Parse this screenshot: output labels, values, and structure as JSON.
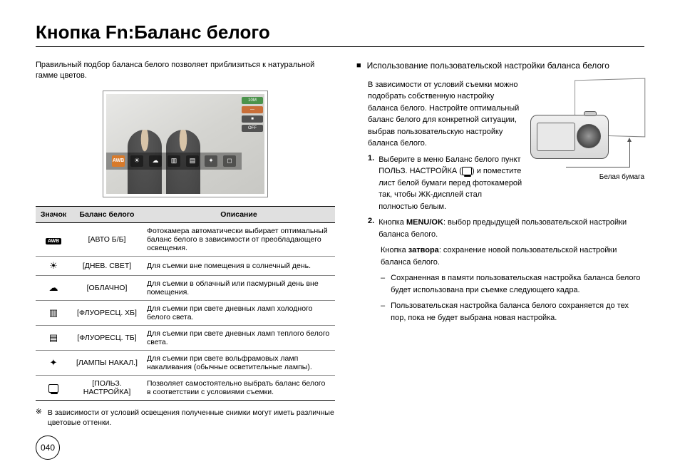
{
  "page": {
    "title": "Кнопка Fn:Баланс белого",
    "number": "040"
  },
  "left": {
    "intro": "Правильный подбор баланса белого позволяет приблизиться к натуральной гамме цветов.",
    "overlay_badges": [
      "10M",
      "—",
      "■",
      "OFF"
    ],
    "table": {
      "headers": [
        "Значок",
        "Баланс белого",
        "Описание"
      ],
      "rows": [
        {
          "icon": "AWB",
          "icon_type": "awb",
          "name": "[АВТО Б/Б]",
          "desc": "Фотокамера автоматически выбирает оптимальный баланс белого в зависимости от преобладающего освещения."
        },
        {
          "icon": "☀",
          "icon_type": "glyph",
          "name": "[ДНЕВ. СВЕТ]",
          "desc": "Для съемки вне помещения в солнечный день."
        },
        {
          "icon": "☁",
          "icon_type": "glyph",
          "name": "[ОБЛАЧНО]",
          "desc": "Для съемки в облачный или пасмурный день вне помещения."
        },
        {
          "icon": "▥",
          "icon_type": "glyph",
          "name": "[ФЛУОРЕСЦ. ХБ]",
          "desc": "Для съемки при свете дневных ламп холодного белого света."
        },
        {
          "icon": "▤",
          "icon_type": "glyph",
          "name": "[ФЛУОРЕСЦ. ТБ]",
          "desc": "Для съемки при свете дневных ламп теплого белого света."
        },
        {
          "icon": "✦",
          "icon_type": "glyph",
          "name": "[ЛАМПЫ НАКАЛ.]",
          "desc": "Для съемки при свете вольфрамовых ламп накаливания (обычные осветительные лампы)."
        },
        {
          "icon": "custom",
          "icon_type": "custom",
          "name": "[ПОЛЬЗ. НАСТРОЙКА]",
          "desc": "Позволяет самостоятельно выбрать баланс белого в соответствии с условиями съемки."
        }
      ]
    },
    "footnote_marker": "※",
    "footnote": "В зависимости от условий освещения полученные снимки могут иметь различные цветовые оттенки."
  },
  "right": {
    "section_title": "Использование пользовательской настройки баланса белого",
    "para1": "В зависимости от условий съемки можно подобрать собственную настройку баланса белого. Настройте оптимальный баланс белого для конкретной ситуации, выбрав пользовательскую настройку баланса белого.",
    "camera_caption": "Белая бумага",
    "step1_num": "1.",
    "step1": "Выберите в меню Баланс белого пункт ПОЛЬЗ. НАСТРОЙКА (",
    "step1_tail": ") и поместите лист белой бумаги перед фотокамерой так, чтобы ЖК-дисплей стал полностью белым.",
    "step2_num": "2.",
    "step2_a": "Кнопка ",
    "step2_menuok": "MENU/OK",
    "step2_b": ": выбор предыдущей пользовательской настройки баланса белого.",
    "step2_c": "Кнопка ",
    "step2_shutter": "затвора",
    "step2_d": ": сохранение новой пользовательской настройки баланса белого.",
    "dash1": "Сохраненная в памяти  пользовательская настройка баланса белого будет использована при съемке следующего кадра.",
    "dash2": "Пользовательская настройка баланса белого сохраняется до тех пор, пока не будет выбрана новая настройка."
  }
}
